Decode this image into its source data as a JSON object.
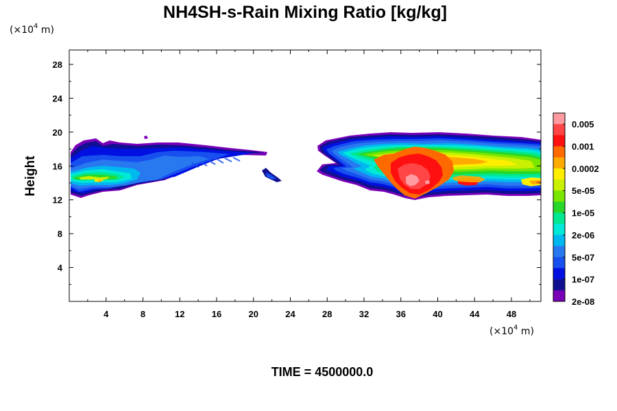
{
  "chart_data": {
    "type": "heatmap",
    "title": "NH4SH-s-Rain Mixing Ratio [kg/kg]",
    "ylabel": "Height",
    "xlabel": "",
    "x_unit_prefix": "(×10",
    "x_unit_exp": "4",
    "x_unit_suffix": " m)",
    "y_unit_prefix": "(×10",
    "y_unit_exp": "4",
    "y_unit_suffix": " m)",
    "x_ticks": [
      4,
      8,
      12,
      16,
      20,
      24,
      28,
      32,
      36,
      40,
      44,
      48
    ],
    "y_ticks": [
      4,
      8,
      12,
      16,
      20,
      24,
      28
    ],
    "xlim": [
      0,
      51.2
    ],
    "ylim": [
      0,
      29.7
    ],
    "colorbar": {
      "labels": [
        "0.005",
        "0.001",
        "0.0002",
        "5e-05",
        "1e-05",
        "2e-06",
        "5e-07",
        "1e-07",
        "2e-08"
      ],
      "colors": [
        "#ff9aa0",
        "#ff4545",
        "#ff1010",
        "#ff6a00",
        "#ffaa00",
        "#ffee00",
        "#c8f000",
        "#78e600",
        "#28d828",
        "#00e890",
        "#00e8d8",
        "#00b8f0",
        "#2878f0",
        "#1850f0",
        "#0010e0",
        "#101090",
        "#7a00b8"
      ]
    },
    "regions": [
      {
        "name": "left-cloud",
        "x_range": [
          0,
          23
        ],
        "y_range": [
          12.5,
          19.2
        ]
      },
      {
        "name": "right-cloud",
        "x_range": [
          26.5,
          51.2
        ],
        "y_range": [
          12.2,
          20.2
        ]
      }
    ],
    "time_label": "TIME = 4500000.0"
  }
}
